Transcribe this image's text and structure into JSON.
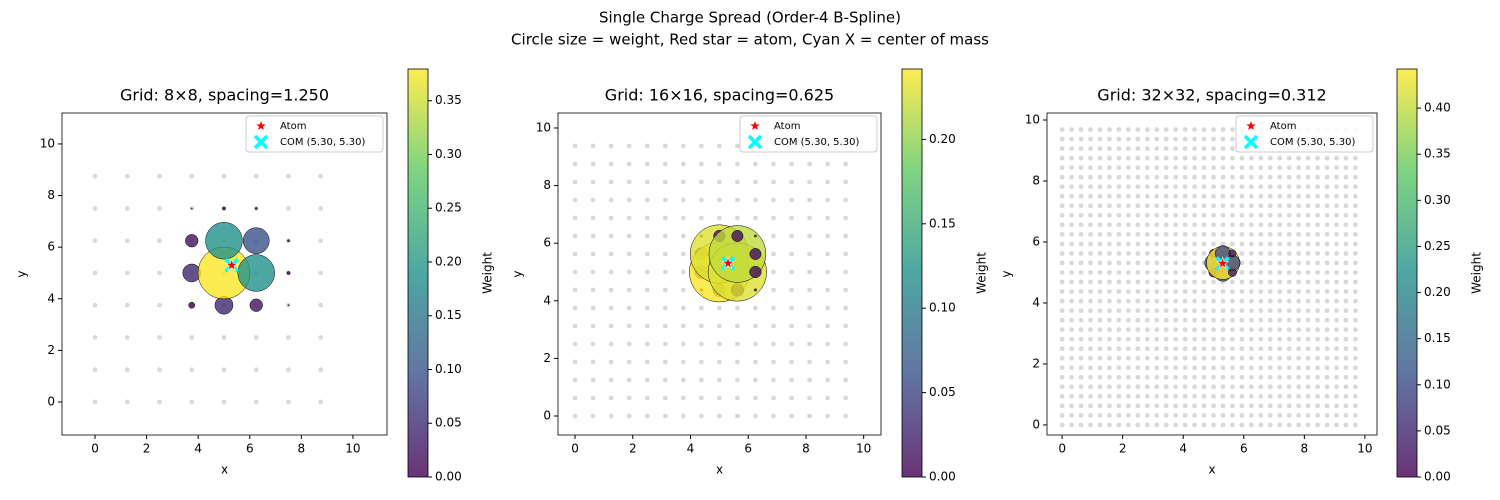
{
  "title_lines": [
    "Single Charge Spread (Order-4 B-Spline)",
    "Circle size = weight, Red star = atom, Cyan X = center of mass"
  ],
  "chart_data": [
    {
      "type": "scatter",
      "title": "Grid: 8×8, spacing=1.250",
      "xlabel": "x",
      "ylabel": "y",
      "xlim": [
        -1.28,
        11.32
      ],
      "ylim": [
        -1.28,
        11.2
      ],
      "xticks": [
        0,
        2,
        4,
        6,
        8,
        10
      ],
      "yticks": [
        0,
        2,
        4,
        6,
        8,
        10
      ],
      "grid_coords": [
        0,
        1.25,
        2.5,
        3.75,
        5,
        6.25,
        7.5,
        8.75
      ],
      "grid_color": "#d9d9d9",
      "x": [
        3.75,
        3.75,
        3.75,
        3.75,
        5,
        5,
        5,
        5,
        6.25,
        6.25,
        6.25,
        6.25,
        7.5,
        7.5,
        7.5,
        7.5
      ],
      "y": [
        3.75,
        5,
        6.25,
        7.5,
        3.75,
        5,
        6.25,
        7.5,
        3.75,
        5,
        6.25,
        7.5,
        3.75,
        5,
        6.25,
        7.5
      ],
      "weights": [
        0.0054,
        0.0451,
        0.0226,
        0.0002,
        0.0451,
        0.3795,
        0.1901,
        0.0014,
        0.0226,
        0.1901,
        0.0952,
        0.0007,
        0.0002,
        0.0014,
        0.0007,
        0
      ],
      "colormap": "viridis",
      "colorbar_label": "Weight",
      "clim": [
        0,
        0.3795
      ],
      "cticks": [
        {
          "value": 0,
          "label": "0.00"
        },
        0.05,
        {
          "value": 0.1,
          "label": "0.10"
        },
        0.15,
        {
          "value": 0.2,
          "label": "0.20"
        },
        0.25,
        {
          "value": 0.3,
          "label": "0.30"
        },
        0.35
      ],
      "atom": {
        "name": "Atom",
        "x": 5.3,
        "y": 5.3,
        "color": "#ff0000"
      },
      "com": {
        "name": "COM (5.30, 5.30)",
        "x": 5.3,
        "y": 5.3,
        "color": "#00ffff"
      },
      "legend": "upper right"
    },
    {
      "type": "scatter",
      "title": "Grid: 16×16, spacing=0.625",
      "xlabel": "x",
      "ylabel": "y",
      "xlim": [
        -0.59,
        10.6
      ],
      "ylim": [
        -0.66,
        10.52
      ],
      "xticks": [
        0,
        2,
        4,
        6,
        8,
        10
      ],
      "yticks": [
        0,
        2,
        4,
        6,
        8,
        10
      ],
      "grid_coords": [
        0,
        0.625,
        1.25,
        1.875,
        2.5,
        3.125,
        3.75,
        4.375,
        5,
        5.625,
        6.25,
        6.875,
        7.5,
        8.125,
        8.75,
        9.375
      ],
      "grid_color": "#d9d9d9",
      "x": [
        4.375,
        4.375,
        4.375,
        4.375,
        5,
        5,
        5,
        5,
        5.625,
        5.625,
        5.625,
        5.625,
        6.25,
        6.25,
        6.25,
        6.25
      ],
      "y": [
        4.375,
        5,
        5.625,
        6.25,
        4.375,
        5,
        5.625,
        6.25,
        4.375,
        5,
        5.625,
        6.25,
        4.375,
        5,
        5.625,
        6.25
      ],
      "weights": [
        0.0005,
        0.0115,
        0.0109,
        0.0004,
        0.0115,
        0.2417,
        0.2294,
        0.009,
        0.0109,
        0.2294,
        0.2177,
        0.0086,
        0.0004,
        0.009,
        0.0086,
        0.0003
      ],
      "colormap": "viridis",
      "colorbar_label": "Weight",
      "clim": [
        0,
        0.2417
      ],
      "cticks": [
        {
          "value": 0,
          "label": "0.00"
        },
        0.05,
        {
          "value": 0.1,
          "label": "0.10"
        },
        0.15,
        {
          "value": 0.2,
          "label": "0.20"
        }
      ],
      "atom": {
        "name": "Atom",
        "x": 5.3,
        "y": 5.3,
        "color": "#ff0000"
      },
      "com": {
        "name": "COM (5.30, 5.30)",
        "x": 5.3,
        "y": 5.3,
        "color": "#00ffff"
      },
      "legend": "upper right"
    },
    {
      "type": "scatter",
      "title": "Grid: 32×32, spacing=0.312",
      "xlabel": "x",
      "ylabel": "y",
      "xlim": [
        -0.5,
        10.4
      ],
      "ylim": [
        -0.33,
        10.23
      ],
      "xticks": [
        0,
        2,
        4,
        6,
        8,
        10
      ],
      "yticks": [
        0,
        2,
        4,
        6,
        8,
        10
      ],
      "grid_coords": [
        0,
        0.3125,
        0.625,
        0.9375,
        1.25,
        1.5625,
        1.875,
        2.1875,
        2.5,
        2.8125,
        3.125,
        3.4375,
        3.75,
        4.0625,
        4.375,
        4.6875,
        5,
        5.3125,
        5.625,
        5.9375,
        6.25,
        6.5625,
        6.875,
        7.1875,
        7.5,
        7.8125,
        8.125,
        8.4375,
        8.75,
        9.0625,
        9.375,
        9.6875
      ],
      "grid_color": "#d9d9d9",
      "x": [
        5,
        5,
        5,
        5.3125,
        5.3125,
        5.3125,
        5.625,
        5.625,
        5.625
      ],
      "y": [
        5,
        5.3125,
        5.625,
        5,
        5.3125,
        5.625,
        5,
        5.3125,
        5.625
      ],
      "weights": [
        0.0351,
        0.1246,
        0.0276,
        0.1246,
        0.4424,
        0.0981,
        0.0276,
        0.0981,
        0.0218
      ],
      "colormap": "viridis",
      "colorbar_label": "Weight",
      "clim": [
        0,
        0.4424
      ],
      "cticks": [
        {
          "value": 0,
          "label": "0.00"
        },
        0.05,
        {
          "value": 0.1,
          "label": "0.10"
        },
        0.15,
        {
          "value": 0.2,
          "label": "0.20"
        },
        0.25,
        {
          "value": 0.3,
          "label": "0.30"
        },
        0.35,
        {
          "value": 0.4,
          "label": "0.40"
        }
      ],
      "atom": {
        "name": "Atom",
        "x": 5.3,
        "y": 5.3,
        "color": "#ff0000"
      },
      "com": {
        "name": "COM (5.30, 5.30)",
        "x": 5.3,
        "y": 5.3,
        "color": "#00ffff"
      },
      "legend": "upper right"
    }
  ]
}
